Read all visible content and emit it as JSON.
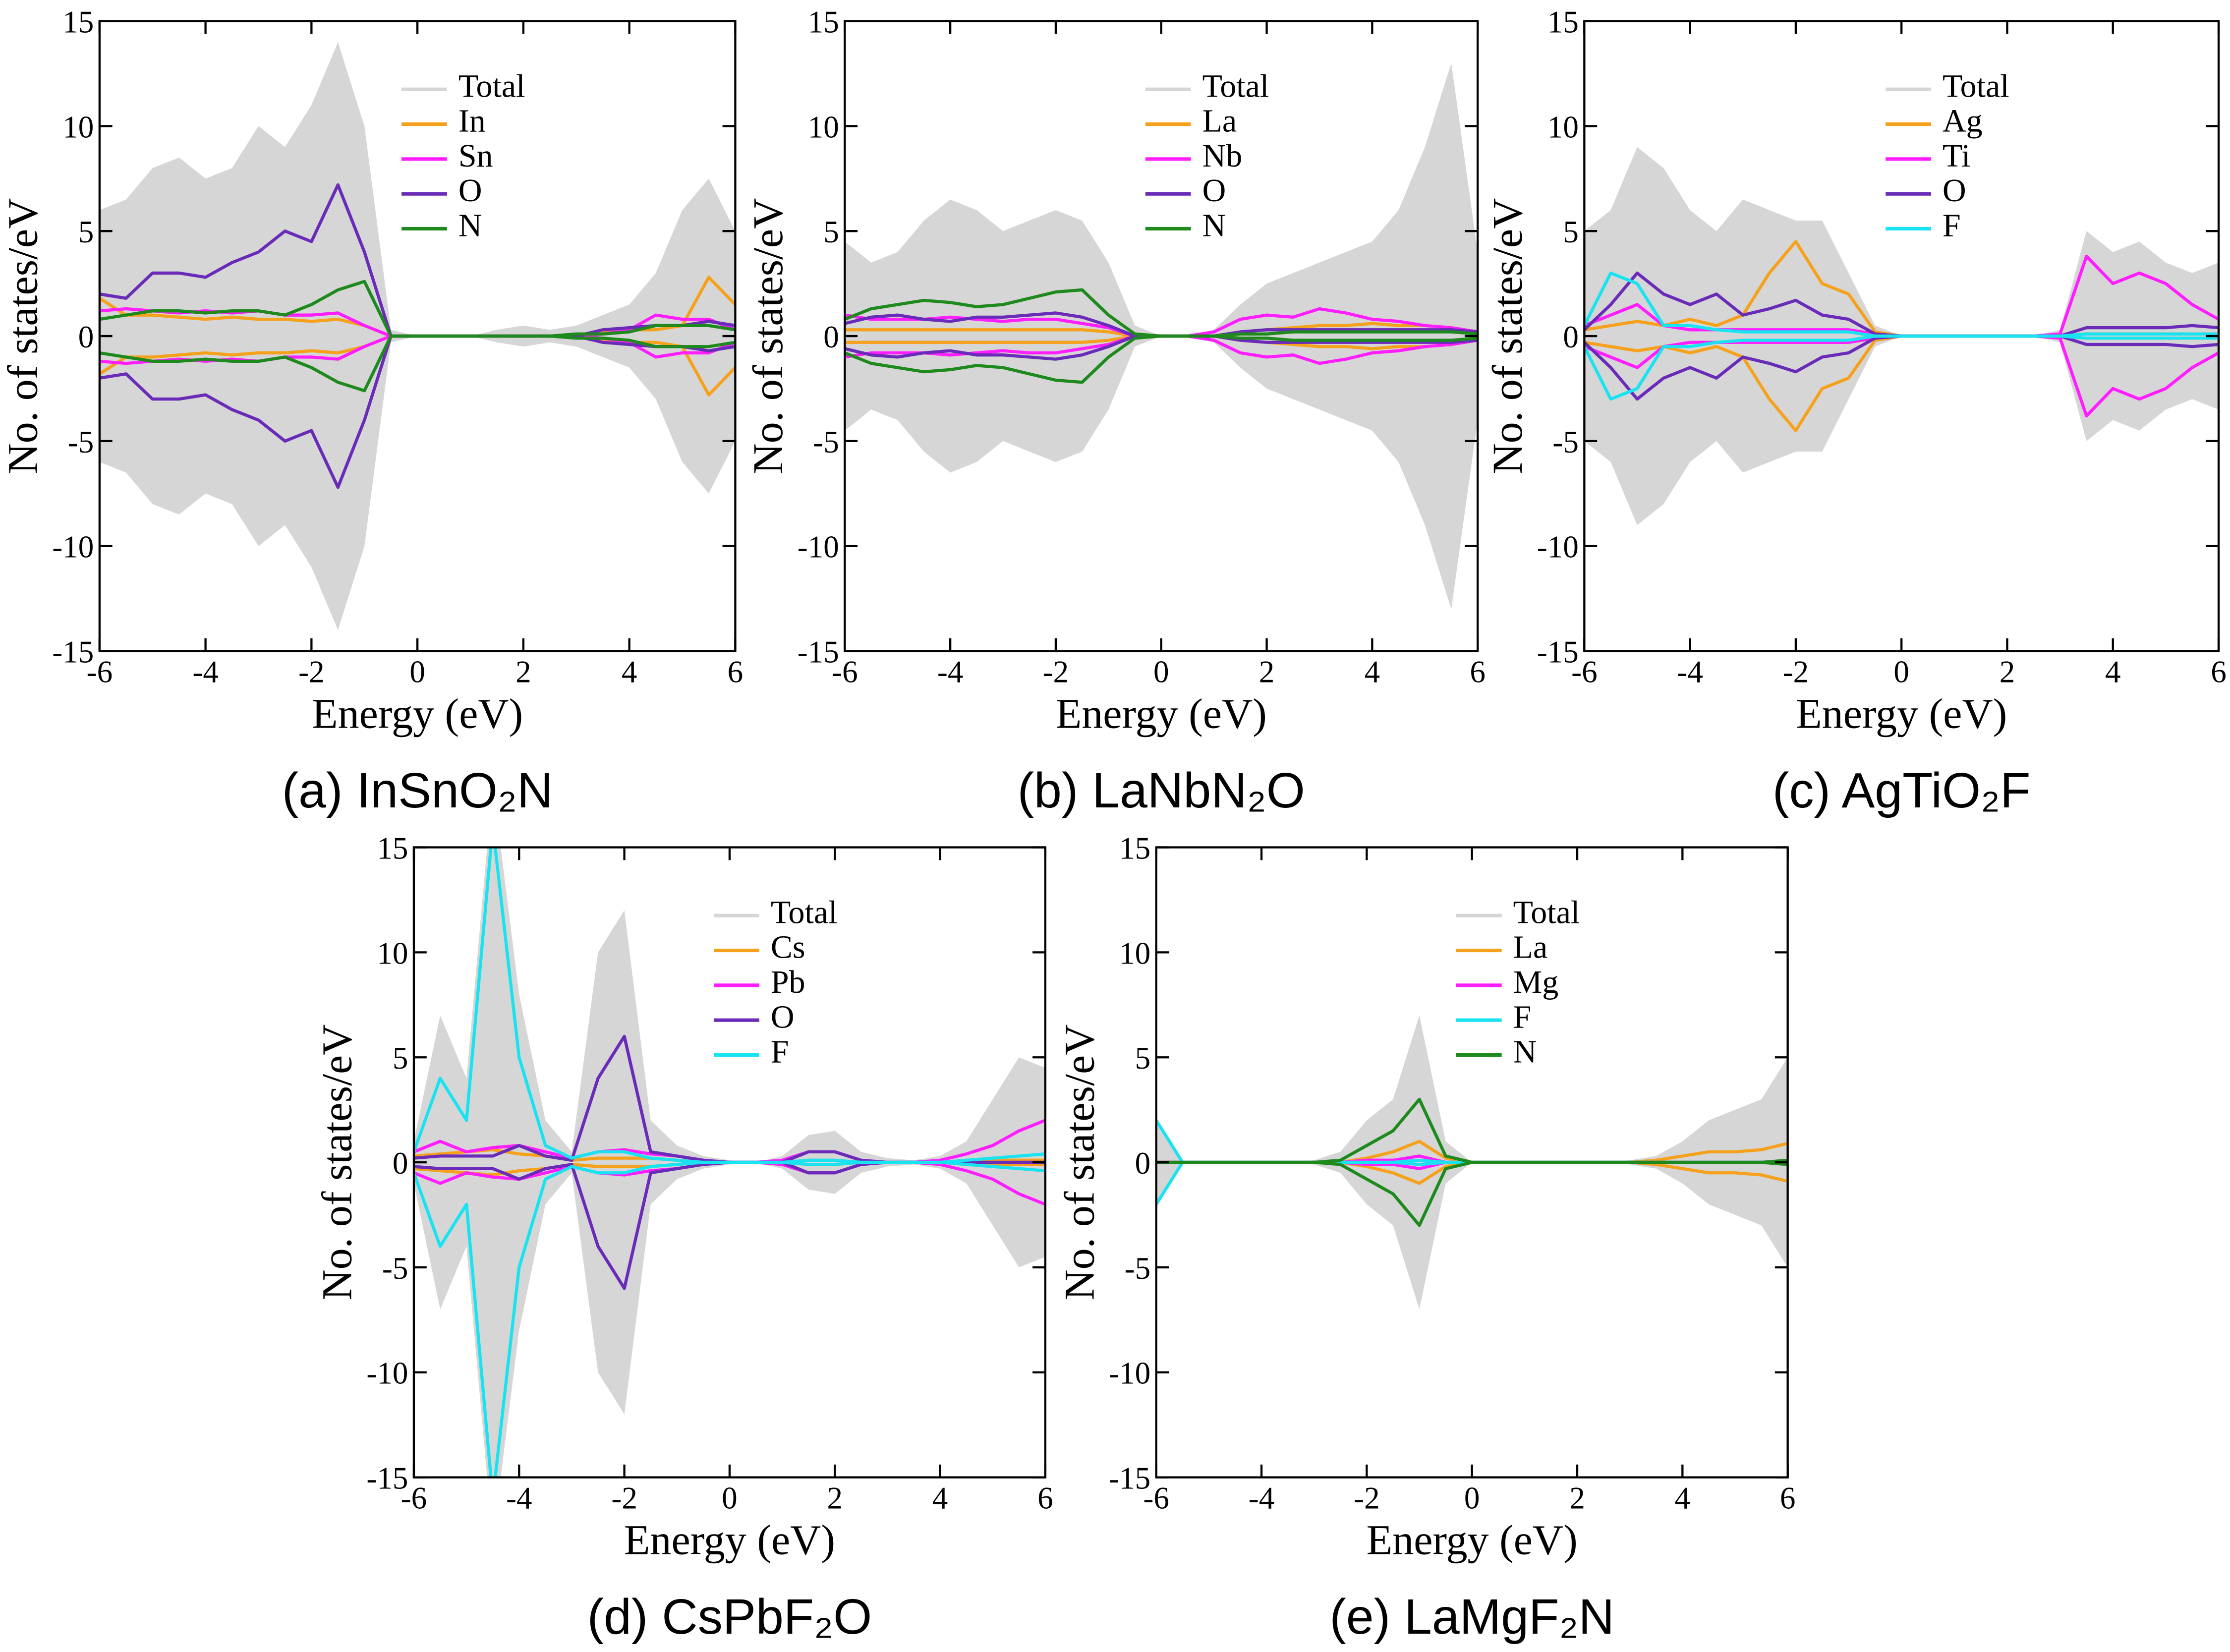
{
  "chart_data": [
    {
      "type": "line",
      "title": "(a) InSnO₂N",
      "xlabel": "Energy (eV)",
      "ylabel": "No. of states/eV",
      "mirrored": true,
      "xlim": [
        -6,
        6
      ],
      "ylim": [
        -15,
        15
      ],
      "xticks": [
        -6,
        -4,
        -2,
        0,
        2,
        4,
        6
      ],
      "yticks": [
        -15,
        -10,
        -5,
        0,
        5,
        10,
        15
      ],
      "x": [
        -6,
        -5.5,
        -5,
        -4.5,
        -4,
        -3.5,
        -3,
        -2.5,
        -2,
        -1.5,
        -1,
        -0.5,
        0,
        0.5,
        1,
        1.5,
        2,
        2.5,
        3,
        3.5,
        4,
        4.5,
        5,
        5.5,
        6
      ],
      "series": [
        {
          "name": "Total",
          "color": "#d6d6d6",
          "style": "area",
          "values": [
            6,
            6.5,
            8,
            8.5,
            7.5,
            8,
            10,
            9,
            11,
            14,
            10,
            0.3,
            0,
            0,
            0,
            0.3,
            0.5,
            0.3,
            0.5,
            1,
            1.5,
            3,
            6,
            7.5,
            5
          ]
        },
        {
          "name": "In",
          "color": "#f5a11c",
          "style": "line",
          "values": [
            1.8,
            1,
            1,
            0.9,
            0.8,
            0.9,
            0.8,
            0.8,
            0.7,
            0.8,
            0.5,
            0,
            0,
            0,
            0,
            0,
            0,
            0,
            0,
            0.2,
            0.3,
            0.3,
            0.5,
            2.8,
            1.5
          ]
        },
        {
          "name": "Sn",
          "color": "#ff1eff",
          "style": "line",
          "values": [
            1.2,
            1.3,
            1.2,
            1.1,
            1.2,
            1.1,
            1.2,
            1,
            1,
            1.1,
            0.5,
            0,
            0,
            0,
            0,
            0,
            0,
            0,
            0,
            0.1,
            0.3,
            1,
            0.8,
            0.8,
            0.3
          ]
        },
        {
          "name": "O",
          "color": "#6a2bb8",
          "style": "line",
          "values": [
            2,
            1.8,
            3,
            3,
            2.8,
            3.5,
            4,
            5,
            4.5,
            7.2,
            4,
            0,
            0,
            0,
            0,
            0,
            0,
            0,
            0,
            0.3,
            0.4,
            0.5,
            0.5,
            0.7,
            0.5
          ]
        },
        {
          "name": "N",
          "color": "#1e8a1e",
          "style": "line",
          "values": [
            0.8,
            1,
            1.2,
            1.2,
            1.1,
            1.2,
            1.2,
            1,
            1.5,
            2.2,
            2.6,
            0,
            0,
            0,
            0,
            0,
            0,
            0,
            0.1,
            0.1,
            0.2,
            0.5,
            0.5,
            0.5,
            0.3
          ]
        }
      ]
    },
    {
      "type": "line",
      "title": "(b) LaNbN₂O",
      "xlabel": "Energy (eV)",
      "ylabel": "No. of states/eV",
      "mirrored": true,
      "xlim": [
        -6,
        6
      ],
      "ylim": [
        -15,
        15
      ],
      "xticks": [
        -6,
        -4,
        -2,
        0,
        2,
        4,
        6
      ],
      "yticks": [
        -15,
        -10,
        -5,
        0,
        5,
        10,
        15
      ],
      "x": [
        -6,
        -5.5,
        -5,
        -4.5,
        -4,
        -3.5,
        -3,
        -2.5,
        -2,
        -1.5,
        -1,
        -0.5,
        0,
        0.5,
        1,
        1.5,
        2,
        2.5,
        3,
        3.5,
        4,
        4.5,
        5,
        5.5,
        6
      ],
      "series": [
        {
          "name": "Total",
          "color": "#d6d6d6",
          "style": "area",
          "values": [
            4.5,
            3.5,
            4,
            5.5,
            6.5,
            6,
            5,
            5.5,
            6,
            5.5,
            3.5,
            0.5,
            0,
            0,
            0.3,
            1.5,
            2.5,
            3,
            3.5,
            4,
            4.5,
            6,
            9,
            13,
            4
          ]
        },
        {
          "name": "La",
          "color": "#f5a11c",
          "style": "line",
          "values": [
            0.3,
            0.3,
            0.3,
            0.3,
            0.3,
            0.3,
            0.3,
            0.3,
            0.3,
            0.3,
            0.2,
            0,
            0,
            0,
            0,
            0.2,
            0.3,
            0.4,
            0.5,
            0.5,
            0.6,
            0.5,
            0.5,
            0.4,
            0.2
          ]
        },
        {
          "name": "Nb",
          "color": "#ff1eff",
          "style": "line",
          "values": [
            1,
            0.8,
            0.8,
            0.8,
            0.9,
            0.8,
            0.7,
            0.8,
            0.8,
            0.6,
            0.4,
            0,
            0,
            0,
            0.2,
            0.8,
            1,
            0.9,
            1.3,
            1.1,
            0.8,
            0.7,
            0.5,
            0.4,
            0.2
          ]
        },
        {
          "name": "O",
          "color": "#6a2bb8",
          "style": "line",
          "values": [
            0.6,
            0.9,
            1,
            0.8,
            0.7,
            0.9,
            0.9,
            1,
            1.1,
            0.9,
            0.5,
            0,
            0,
            0,
            0,
            0.2,
            0.3,
            0.3,
            0.3,
            0.3,
            0.3,
            0.3,
            0.3,
            0.3,
            0.2
          ]
        },
        {
          "name": "N",
          "color": "#1e8a1e",
          "style": "line",
          "values": [
            0.8,
            1.3,
            1.5,
            1.7,
            1.6,
            1.4,
            1.5,
            1.8,
            2.1,
            2.2,
            1,
            0.1,
            0,
            0,
            0,
            0.1,
            0.1,
            0.2,
            0.2,
            0.2,
            0.2,
            0.2,
            0.2,
            0.2,
            0.1
          ]
        }
      ]
    },
    {
      "type": "line",
      "title": "(c) AgTiO₂F",
      "xlabel": "Energy (eV)",
      "ylabel": "No. of states/eV",
      "mirrored": true,
      "xlim": [
        -6,
        6
      ],
      "ylim": [
        -15,
        15
      ],
      "xticks": [
        -6,
        -4,
        -2,
        0,
        2,
        4,
        6
      ],
      "yticks": [
        -15,
        -10,
        -5,
        0,
        5,
        10,
        15
      ],
      "x": [
        -6,
        -5.5,
        -5,
        -4.5,
        -4,
        -3.5,
        -3,
        -2.5,
        -2,
        -1.5,
        -1,
        -0.5,
        0,
        0.5,
        1,
        1.5,
        2,
        2.5,
        3,
        3.5,
        4,
        4.5,
        5,
        5.5,
        6
      ],
      "series": [
        {
          "name": "Total",
          "color": "#d6d6d6",
          "style": "area",
          "values": [
            5,
            6,
            9,
            8,
            6,
            5,
            6.5,
            6,
            5.5,
            5.5,
            3,
            0.5,
            0,
            0,
            0,
            0,
            0,
            0,
            0.3,
            5,
            4,
            4.5,
            3.5,
            3,
            3.5
          ]
        },
        {
          "name": "Ag",
          "color": "#f5a11c",
          "style": "line",
          "values": [
            0.3,
            0.5,
            0.7,
            0.5,
            0.8,
            0.5,
            1,
            3,
            4.5,
            2.5,
            2,
            0.2,
            0,
            0,
            0,
            0,
            0,
            0,
            0,
            0.1,
            0.1,
            0.1,
            0.1,
            0.1,
            0.1
          ]
        },
        {
          "name": "Ti",
          "color": "#ff1eff",
          "style": "line",
          "values": [
            0.5,
            1,
            1.5,
            0.5,
            0.3,
            0.3,
            0.3,
            0.3,
            0.3,
            0.3,
            0.3,
            0.1,
            0,
            0,
            0,
            0,
            0,
            0,
            0.1,
            3.8,
            2.5,
            3,
            2.5,
            1.5,
            0.8
          ]
        },
        {
          "name": "O",
          "color": "#6a2bb8",
          "style": "line",
          "values": [
            0.3,
            1.5,
            3,
            2,
            1.5,
            2,
            1,
            1.3,
            1.7,
            1,
            0.8,
            0.1,
            0,
            0,
            0,
            0,
            0,
            0,
            0,
            0.4,
            0.4,
            0.4,
            0.4,
            0.5,
            0.4
          ]
        },
        {
          "name": "F",
          "color": "#19e3f0",
          "style": "line",
          "values": [
            0.5,
            3,
            2.5,
            0.5,
            0.5,
            0.3,
            0.2,
            0.2,
            0.2,
            0.2,
            0.2,
            0,
            0,
            0,
            0,
            0,
            0,
            0,
            0,
            0.1,
            0.1,
            0.1,
            0.1,
            0.1,
            0.1
          ]
        }
      ]
    },
    {
      "type": "line",
      "title": "(d) CsPbF₂O",
      "xlabel": "Energy (eV)",
      "ylabel": "No. of states/eV",
      "mirrored": true,
      "xlim": [
        -6,
        6
      ],
      "ylim": [
        -15,
        15
      ],
      "xticks": [
        -6,
        -4,
        -2,
        0,
        2,
        4,
        6
      ],
      "yticks": [
        -15,
        -10,
        -5,
        0,
        5,
        10,
        15
      ],
      "x": [
        -6,
        -5.5,
        -5,
        -4.5,
        -4,
        -3.5,
        -3,
        -2.5,
        -2,
        -1.5,
        -1,
        -0.5,
        0,
        0.5,
        1,
        1.5,
        2,
        2.5,
        3,
        3.5,
        4,
        4.5,
        5,
        5.5,
        6
      ],
      "series": [
        {
          "name": "Total",
          "color": "#d6d6d6",
          "style": "area",
          "values": [
            1,
            7,
            4,
            18,
            8,
            2,
            0.5,
            10,
            12,
            2,
            0.8,
            0.3,
            0.1,
            0,
            0.3,
            1.3,
            1.5,
            0.5,
            0.2,
            0.1,
            0.3,
            1,
            3,
            5,
            4.5
          ]
        },
        {
          "name": "Cs",
          "color": "#f5a11c",
          "style": "line",
          "values": [
            0.3,
            0.4,
            0.5,
            0.6,
            0.4,
            0.3,
            0.1,
            0.2,
            0.2,
            0.2,
            0.1,
            0,
            0,
            0,
            0,
            0.1,
            0.1,
            0,
            0,
            0,
            0,
            0.1,
            0.1,
            0.1,
            0.1
          ]
        },
        {
          "name": "Pb",
          "color": "#ff1eff",
          "style": "line",
          "values": [
            0.5,
            1,
            0.5,
            0.7,
            0.8,
            0.5,
            0.2,
            0.5,
            0.6,
            0.4,
            0.3,
            0.1,
            0,
            0,
            0.1,
            0.5,
            0.5,
            0.1,
            0,
            0,
            0.1,
            0.4,
            0.8,
            1.5,
            2
          ]
        },
        {
          "name": "O",
          "color": "#6a2bb8",
          "style": "line",
          "values": [
            0.2,
            0.3,
            0.3,
            0.3,
            0.8,
            0.3,
            0.1,
            4,
            6,
            0.5,
            0.3,
            0.1,
            0,
            0,
            0,
            0.5,
            0.5,
            0.1,
            0,
            0,
            0,
            0,
            0,
            0,
            0
          ]
        },
        {
          "name": "F",
          "color": "#19e3f0",
          "style": "line",
          "values": [
            0.5,
            4,
            2,
            16,
            5,
            0.8,
            0.2,
            0.5,
            0.5,
            0.2,
            0.1,
            0,
            0,
            0,
            0,
            0.1,
            0.1,
            0,
            0,
            0,
            0,
            0.1,
            0.2,
            0.3,
            0.4
          ]
        }
      ]
    },
    {
      "type": "line",
      "title": "(e) LaMgF₂N",
      "xlabel": "Energy (eV)",
      "ylabel": "No. of states/eV",
      "mirrored": true,
      "xlim": [
        -6,
        6
      ],
      "ylim": [
        -15,
        15
      ],
      "xticks": [
        -6,
        -4,
        -2,
        0,
        2,
        4,
        6
      ],
      "yticks": [
        -15,
        -10,
        -5,
        0,
        5,
        10,
        15
      ],
      "x": [
        -6,
        -5.5,
        -5,
        -4.5,
        -4,
        -3.5,
        -3,
        -2.5,
        -2,
        -1.5,
        -1,
        -0.5,
        0,
        0.5,
        1,
        1.5,
        2,
        2.5,
        3,
        3.5,
        4,
        4.5,
        5,
        5.5,
        6
      ],
      "series": [
        {
          "name": "Total",
          "color": "#d6d6d6",
          "style": "area",
          "values": [
            2,
            0,
            0,
            0,
            0,
            0,
            0.1,
            0.5,
            2,
            3,
            7,
            1,
            0,
            0,
            0,
            0,
            0,
            0,
            0.1,
            0.3,
            1,
            2,
            2.5,
            3,
            5
          ]
        },
        {
          "name": "La",
          "color": "#f5a11c",
          "style": "line",
          "values": [
            0,
            0,
            0,
            0,
            0,
            0,
            0,
            0,
            0.2,
            0.5,
            1,
            0.2,
            0,
            0,
            0,
            0,
            0,
            0,
            0,
            0.1,
            0.3,
            0.5,
            0.5,
            0.6,
            0.9
          ]
        },
        {
          "name": "Mg",
          "color": "#ff1eff",
          "style": "line",
          "values": [
            0,
            0,
            0,
            0,
            0,
            0,
            0,
            0,
            0.1,
            0.1,
            0.3,
            0,
            0,
            0,
            0,
            0,
            0,
            0,
            0,
            0,
            0,
            0,
            0,
            0,
            0.1
          ]
        },
        {
          "name": "F",
          "color": "#19e3f0",
          "style": "line",
          "values": [
            2,
            0,
            0,
            0,
            0,
            0,
            0,
            0,
            0,
            0,
            0.1,
            0,
            0,
            0,
            0,
            0,
            0,
            0,
            0,
            0,
            0,
            0,
            0,
            0,
            0
          ]
        },
        {
          "name": "N",
          "color": "#1e8a1e",
          "style": "line",
          "values": [
            0,
            0,
            0,
            0,
            0,
            0,
            0,
            0.1,
            0.8,
            1.5,
            3,
            0.3,
            0,
            0,
            0,
            0,
            0,
            0,
            0,
            0,
            0,
            0,
            0,
            0,
            0.1
          ]
        }
      ]
    }
  ]
}
